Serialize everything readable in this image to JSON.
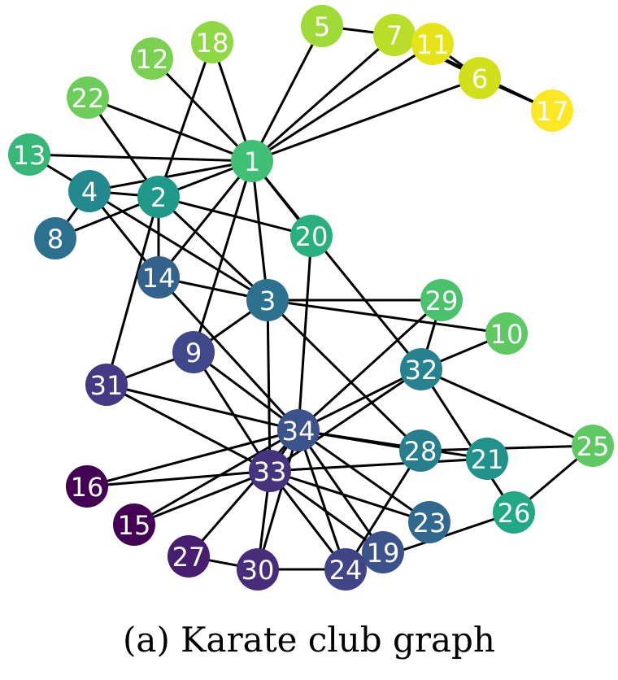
{
  "caption": "(a)  Karate club graph",
  "nodes": [
    {
      "id": "1",
      "color": "#41c075"
    },
    {
      "id": "2",
      "color": "#1f9a8a"
    },
    {
      "id": "3",
      "color": "#2c728e"
    },
    {
      "id": "4",
      "color": "#23898e"
    },
    {
      "id": "5",
      "color": "#a0da39"
    },
    {
      "id": "6",
      "color": "#d0e11c"
    },
    {
      "id": "7",
      "color": "#b8de29"
    },
    {
      "id": "8",
      "color": "#2d708e"
    },
    {
      "id": "9",
      "color": "#3f4889"
    },
    {
      "id": "10",
      "color": "#5ec962"
    },
    {
      "id": "11",
      "color": "#e5e419"
    },
    {
      "id": "12",
      "color": "#7ad151"
    },
    {
      "id": "13",
      "color": "#37b878"
    },
    {
      "id": "14",
      "color": "#33638d"
    },
    {
      "id": "15",
      "color": "#440154"
    },
    {
      "id": "16",
      "color": "#440154"
    },
    {
      "id": "17",
      "color": "#fde725"
    },
    {
      "id": "18",
      "color": "#8fd744"
    },
    {
      "id": "19",
      "color": "#3b528b"
    },
    {
      "id": "20",
      "color": "#2ab07f"
    },
    {
      "id": "21",
      "color": "#21918c"
    },
    {
      "id": "22",
      "color": "#6ccd5a"
    },
    {
      "id": "23",
      "color": "#31688e"
    },
    {
      "id": "24",
      "color": "#414487"
    },
    {
      "id": "25",
      "color": "#5ec962"
    },
    {
      "id": "26",
      "color": "#22a884"
    },
    {
      "id": "27",
      "color": "#481f70"
    },
    {
      "id": "28",
      "color": "#277f8e"
    },
    {
      "id": "29",
      "color": "#4ac16d"
    },
    {
      "id": "30",
      "color": "#472d7b"
    },
    {
      "id": "31",
      "color": "#443983"
    },
    {
      "id": "32",
      "color": "#26828e"
    },
    {
      "id": "33",
      "color": "#46337e"
    },
    {
      "id": "34",
      "color": "#3b528b"
    }
  ],
  "edges": [
    [
      "1",
      "2"
    ],
    [
      "1",
      "3"
    ],
    [
      "1",
      "4"
    ],
    [
      "1",
      "5"
    ],
    [
      "1",
      "6"
    ],
    [
      "1",
      "7"
    ],
    [
      "1",
      "9"
    ],
    [
      "1",
      "11"
    ],
    [
      "1",
      "12"
    ],
    [
      "1",
      "13"
    ],
    [
      "1",
      "14"
    ],
    [
      "1",
      "18"
    ],
    [
      "1",
      "20"
    ],
    [
      "1",
      "22"
    ],
    [
      "1",
      "32"
    ],
    [
      "2",
      "3"
    ],
    [
      "2",
      "4"
    ],
    [
      "2",
      "8"
    ],
    [
      "2",
      "14"
    ],
    [
      "2",
      "18"
    ],
    [
      "2",
      "20"
    ],
    [
      "2",
      "22"
    ],
    [
      "2",
      "31"
    ],
    [
      "3",
      "4"
    ],
    [
      "3",
      "9"
    ],
    [
      "3",
      "10"
    ],
    [
      "3",
      "14"
    ],
    [
      "3",
      "28"
    ],
    [
      "3",
      "29"
    ],
    [
      "3",
      "33"
    ],
    [
      "4",
      "8"
    ],
    [
      "4",
      "13"
    ],
    [
      "4",
      "14"
    ],
    [
      "5",
      "7"
    ],
    [
      "6",
      "7"
    ],
    [
      "6",
      "11"
    ],
    [
      "6",
      "17"
    ],
    [
      "7",
      "11"
    ],
    [
      "7",
      "17"
    ],
    [
      "9",
      "31"
    ],
    [
      "9",
      "33"
    ],
    [
      "9",
      "34"
    ],
    [
      "10",
      "32"
    ],
    [
      "14",
      "34"
    ],
    [
      "15",
      "33"
    ],
    [
      "15",
      "34"
    ],
    [
      "16",
      "33"
    ],
    [
      "16",
      "34"
    ],
    [
      "19",
      "33"
    ],
    [
      "19",
      "34"
    ],
    [
      "20",
      "34"
    ],
    [
      "21",
      "33"
    ],
    [
      "21",
      "34"
    ],
    [
      "23",
      "33"
    ],
    [
      "23",
      "34"
    ],
    [
      "24",
      "26"
    ],
    [
      "24",
      "28"
    ],
    [
      "24",
      "30"
    ],
    [
      "24",
      "33"
    ],
    [
      "24",
      "34"
    ],
    [
      "25",
      "26"
    ],
    [
      "25",
      "28"
    ],
    [
      "25",
      "32"
    ],
    [
      "26",
      "32"
    ],
    [
      "27",
      "30"
    ],
    [
      "27",
      "34"
    ],
    [
      "28",
      "34"
    ],
    [
      "29",
      "32"
    ],
    [
      "29",
      "34"
    ],
    [
      "30",
      "33"
    ],
    [
      "30",
      "34"
    ],
    [
      "31",
      "33"
    ],
    [
      "31",
      "34"
    ],
    [
      "32",
      "33"
    ],
    [
      "32",
      "34"
    ],
    [
      "33",
      "34"
    ]
  ]
}
